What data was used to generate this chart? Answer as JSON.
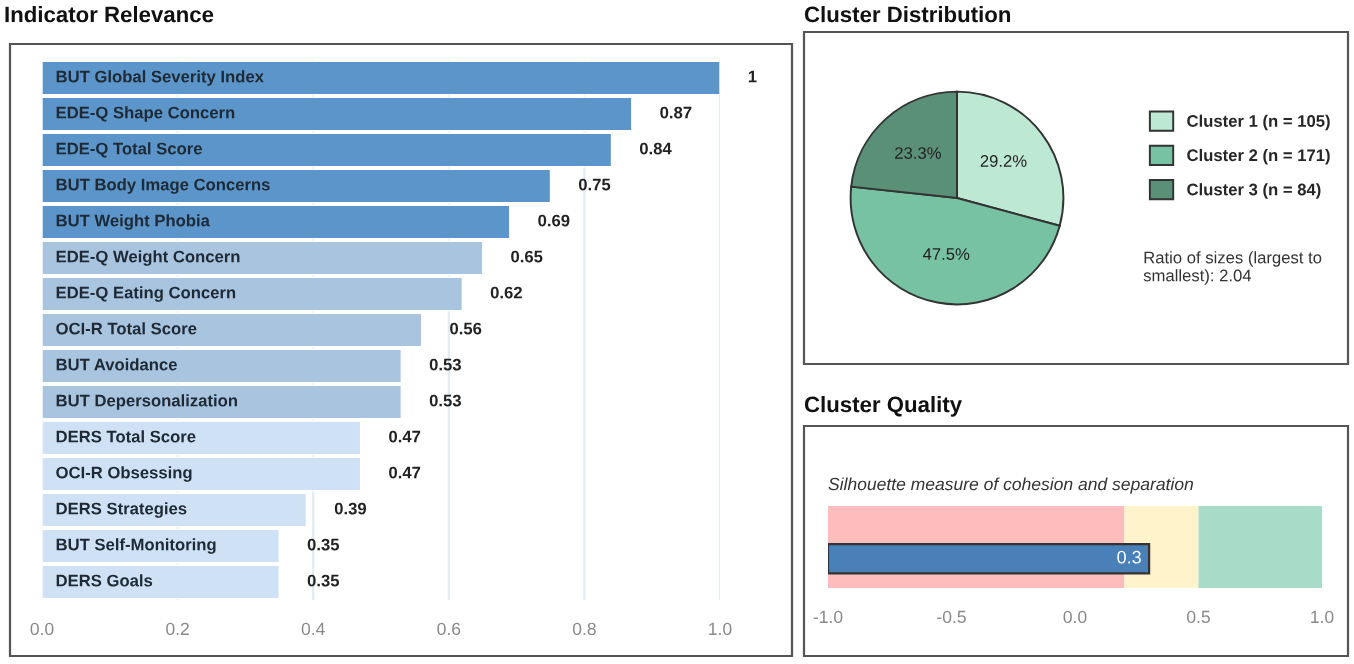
{
  "chart_data": [
    {
      "type": "bar",
      "title": "Indicator Relevance",
      "orientation": "horizontal",
      "categories": [
        "BUT Global Severity Index",
        "EDE-Q Shape Concern",
        "EDE-Q Total Score",
        "BUT Body Image Concerns",
        "BUT Weight Phobia",
        "EDE-Q Weight Concern",
        "EDE-Q Eating Concern",
        "OCI-R Total Score",
        "BUT Avoidance",
        "BUT Depersonalization",
        "DERS Total Score",
        "OCI-R Obsessing",
        "DERS Strategies",
        "BUT Self-Monitoring",
        "DERS Goals"
      ],
      "values": [
        1,
        0.87,
        0.84,
        0.75,
        0.69,
        0.65,
        0.62,
        0.56,
        0.53,
        0.53,
        0.47,
        0.47,
        0.39,
        0.35,
        0.35
      ],
      "colors": [
        "#5b95c9",
        "#5b95c9",
        "#5b95c9",
        "#5b95c9",
        "#5b95c9",
        "#a9c4df",
        "#a9c4df",
        "#a9c4df",
        "#a9c4df",
        "#a9c4df",
        "#cfe2f5",
        "#cfe2f5",
        "#cfe2f5",
        "#cfe2f5",
        "#cfe2f5"
      ],
      "xlim": [
        0,
        1
      ],
      "xticks": [
        {
          "value": 0,
          "label": "0.0"
        },
        {
          "value": 0.2,
          "label": "0.2"
        },
        {
          "value": 0.4,
          "label": "0.4"
        },
        {
          "value": 0.6,
          "label": "0.6"
        },
        {
          "value": 0.8,
          "label": "0.8"
        },
        {
          "value": 1,
          "label": "1.0"
        }
      ],
      "grid": "x",
      "data_labels": true
    },
    {
      "type": "pie",
      "title": "Cluster Distribution",
      "categories": [
        "Cluster 1 (n = 105)",
        "Cluster 2 (n = 171)",
        "Cluster 3 (n = 84)"
      ],
      "values": [
        29.2,
        47.5,
        23.3
      ],
      "value_labels": [
        "29.2%",
        "47.5%",
        "23.3%"
      ],
      "colors": [
        "#bde8d4",
        "#76c2a2",
        "#5a8f78"
      ],
      "legend": "right",
      "annotations": [
        "Ratio of sizes (largest to smallest): 2.04"
      ]
    },
    {
      "type": "bar",
      "title": "Cluster Quality",
      "subtitle": "Silhouette measure of cohesion and separation",
      "orientation": "horizontal",
      "categories": [
        null
      ],
      "base": [
        -1
      ],
      "values": [
        1.3
      ],
      "value_labels": [
        "0.3"
      ],
      "colors": [
        "#4a80b8"
      ],
      "xlim": [
        -1,
        1
      ],
      "xticks": [
        {
          "value": -1,
          "label": "-1.0"
        },
        {
          "value": -0.5,
          "label": "-0.5"
        },
        {
          "value": 0,
          "label": "0.0"
        },
        {
          "value": 0.5,
          "label": "0.5"
        },
        {
          "value": 1,
          "label": "1.0"
        }
      ],
      "bands": [
        {
          "axis": "x",
          "from": -1,
          "to": 0.2,
          "color": "#ffbcbc"
        },
        {
          "axis": "x",
          "from": 0.2,
          "to": 0.5,
          "color": "#fff3cc"
        },
        {
          "axis": "x",
          "from": 0.5,
          "to": 1,
          "color": "#a8dcc8"
        }
      ]
    }
  ]
}
